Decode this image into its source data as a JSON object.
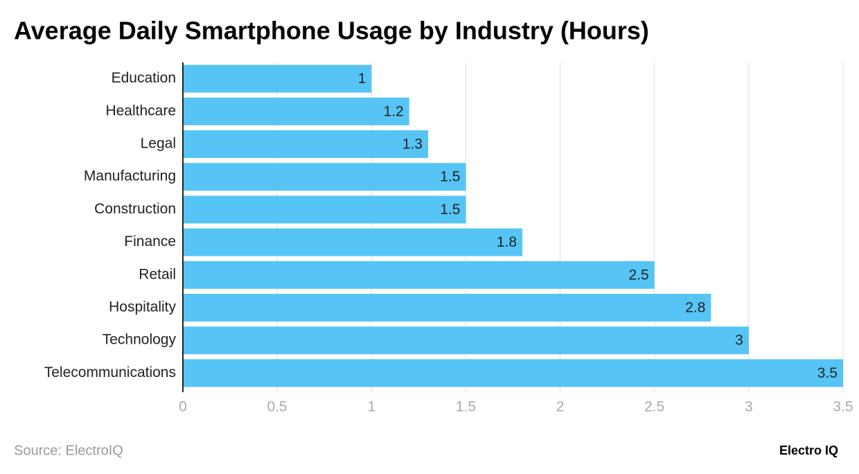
{
  "chart_data": {
    "type": "bar",
    "orientation": "horizontal",
    "title": "Average Daily Smartphone Usage by Industry (Hours)",
    "categories": [
      "Education",
      "Healthcare",
      "Legal",
      "Manufacturing",
      "Construction",
      "Finance",
      "Retail",
      "Hospitality",
      "Technology",
      "Telecommunications"
    ],
    "values": [
      1,
      1.2,
      1.3,
      1.5,
      1.5,
      1.8,
      2.5,
      2.8,
      3,
      3.5
    ],
    "color": "#56c5f5",
    "xlim": [
      0,
      3.5
    ],
    "xticks": [
      0,
      0.5,
      1,
      1.5,
      2,
      2.5,
      3,
      3.5
    ],
    "grid": true,
    "source": "Source: ElectroIQ",
    "brand": "Electro IQ"
  }
}
